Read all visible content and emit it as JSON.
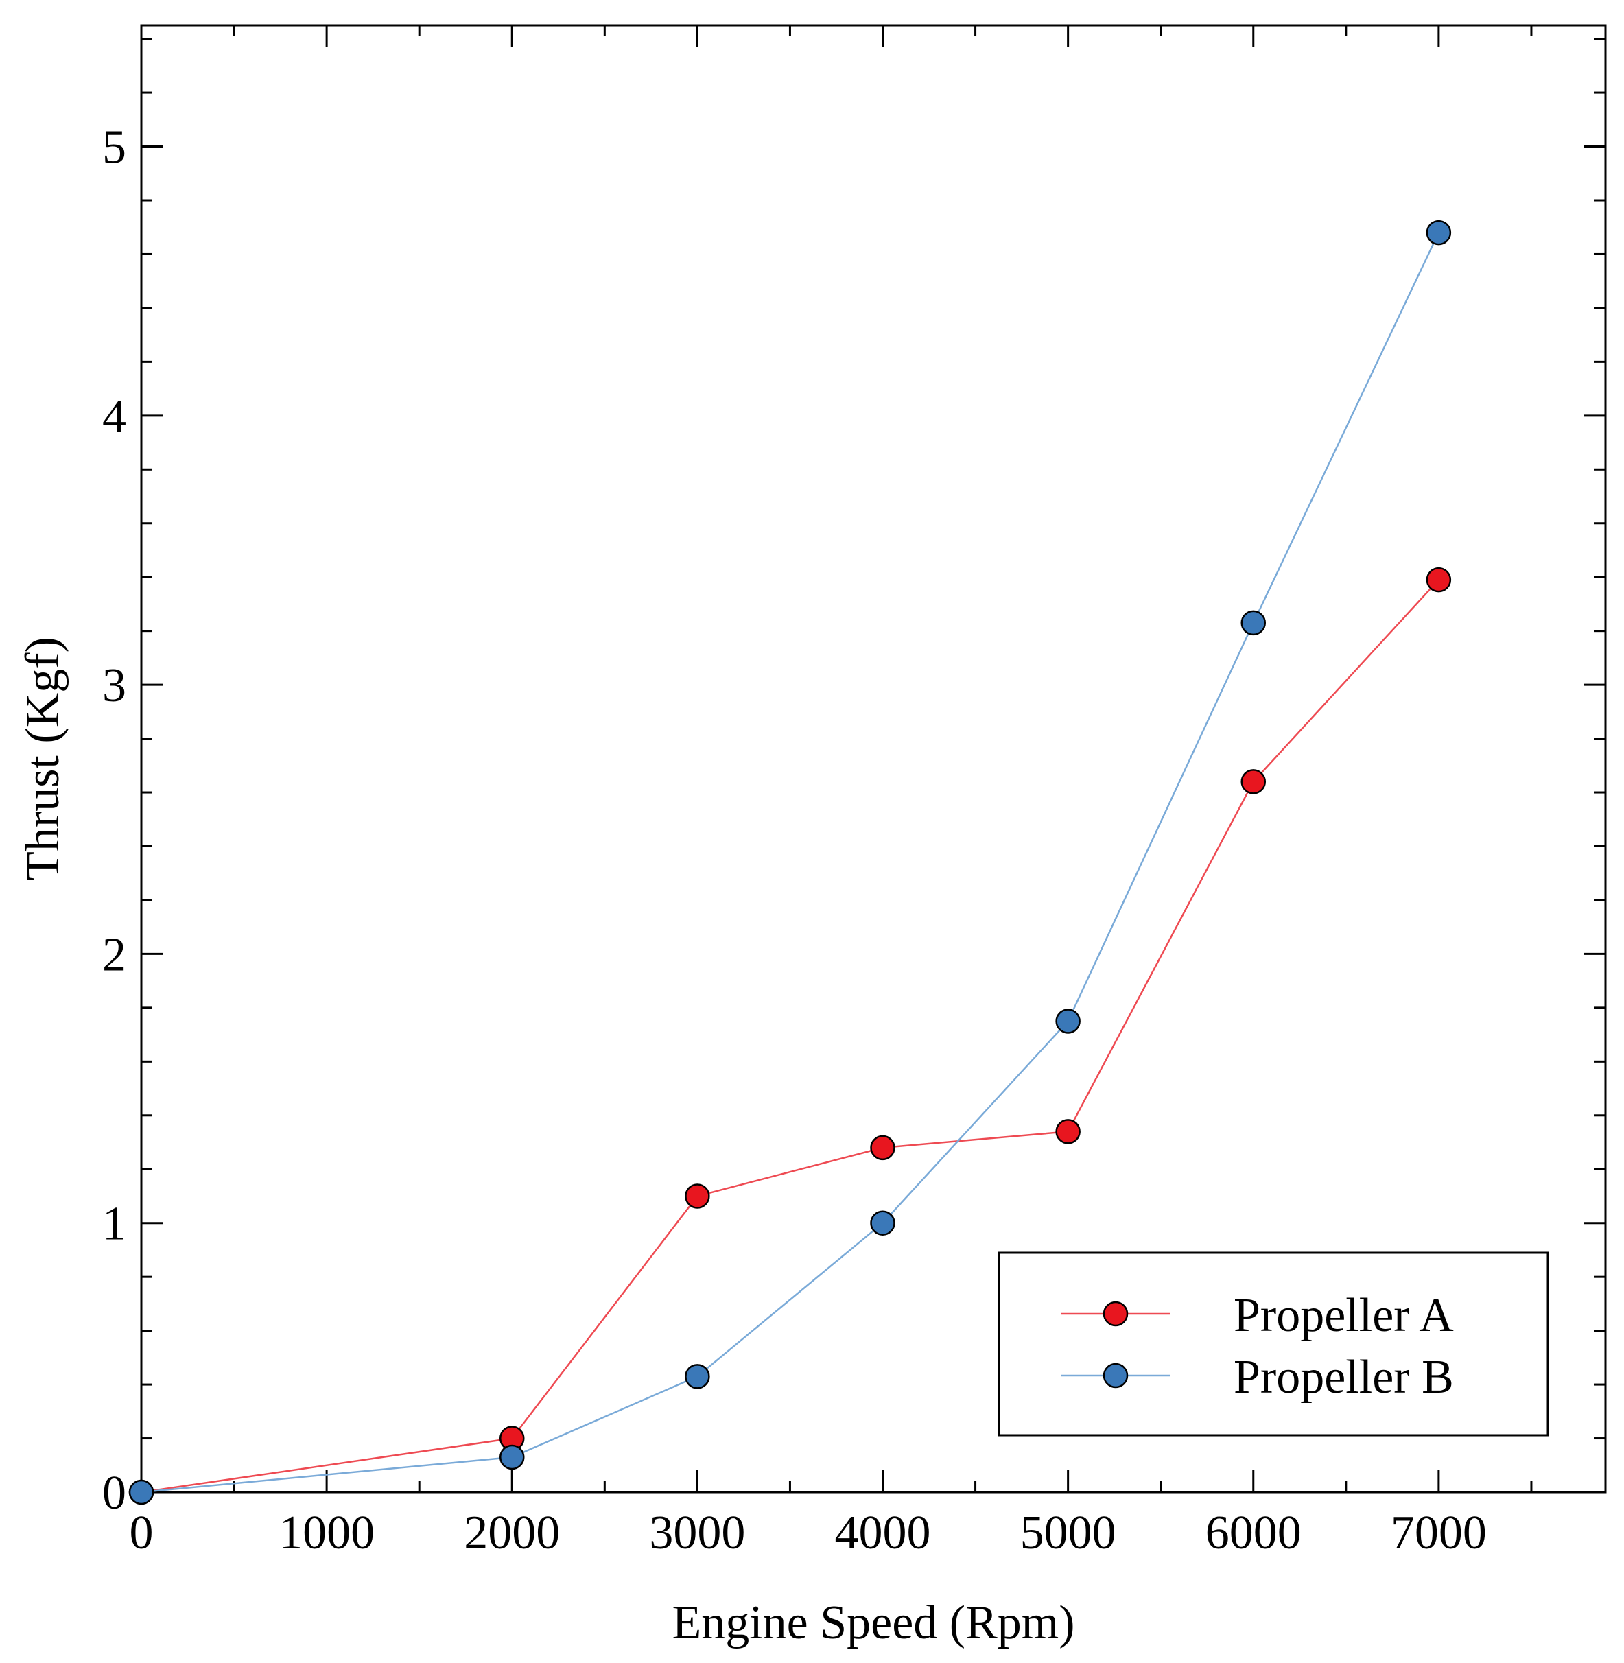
{
  "chart_data": {
    "type": "line",
    "title": "",
    "xlabel": "Engine Speed (Rpm)",
    "ylabel": "Thrust (Kgf)",
    "xlim": [
      0,
      7900
    ],
    "ylim": [
      0,
      5.45
    ],
    "x_ticks": [
      0,
      1000,
      2000,
      3000,
      4000,
      5000,
      6000,
      7000
    ],
    "x_tick_labels": [
      "0",
      "1000",
      "2000",
      "3000",
      "4000",
      "5000",
      "6000",
      "7000"
    ],
    "x_minor_step": 500,
    "y_ticks": [
      0,
      1,
      2,
      3,
      4,
      5
    ],
    "y_tick_labels": [
      "0",
      "1",
      "2",
      "3",
      "4",
      "5"
    ],
    "y_minor_step": 0.2,
    "grid": false,
    "legend_position": "bottom-right",
    "series": [
      {
        "name": "Propeller A",
        "color": "#e8161f",
        "line_color": "#ee4a52",
        "x": [
          0,
          2000,
          3000,
          4000,
          5000,
          6000,
          7000
        ],
        "y": [
          0,
          0.2,
          1.1,
          1.28,
          1.34,
          2.64,
          3.39
        ]
      },
      {
        "name": "Propeller B",
        "color": "#3a78b8",
        "line_color": "#7aaad8",
        "x": [
          0,
          2000,
          3000,
          4000,
          5000,
          6000,
          7000
        ],
        "y": [
          0,
          0.13,
          0.43,
          1.0,
          1.75,
          3.23,
          4.68
        ]
      }
    ]
  }
}
